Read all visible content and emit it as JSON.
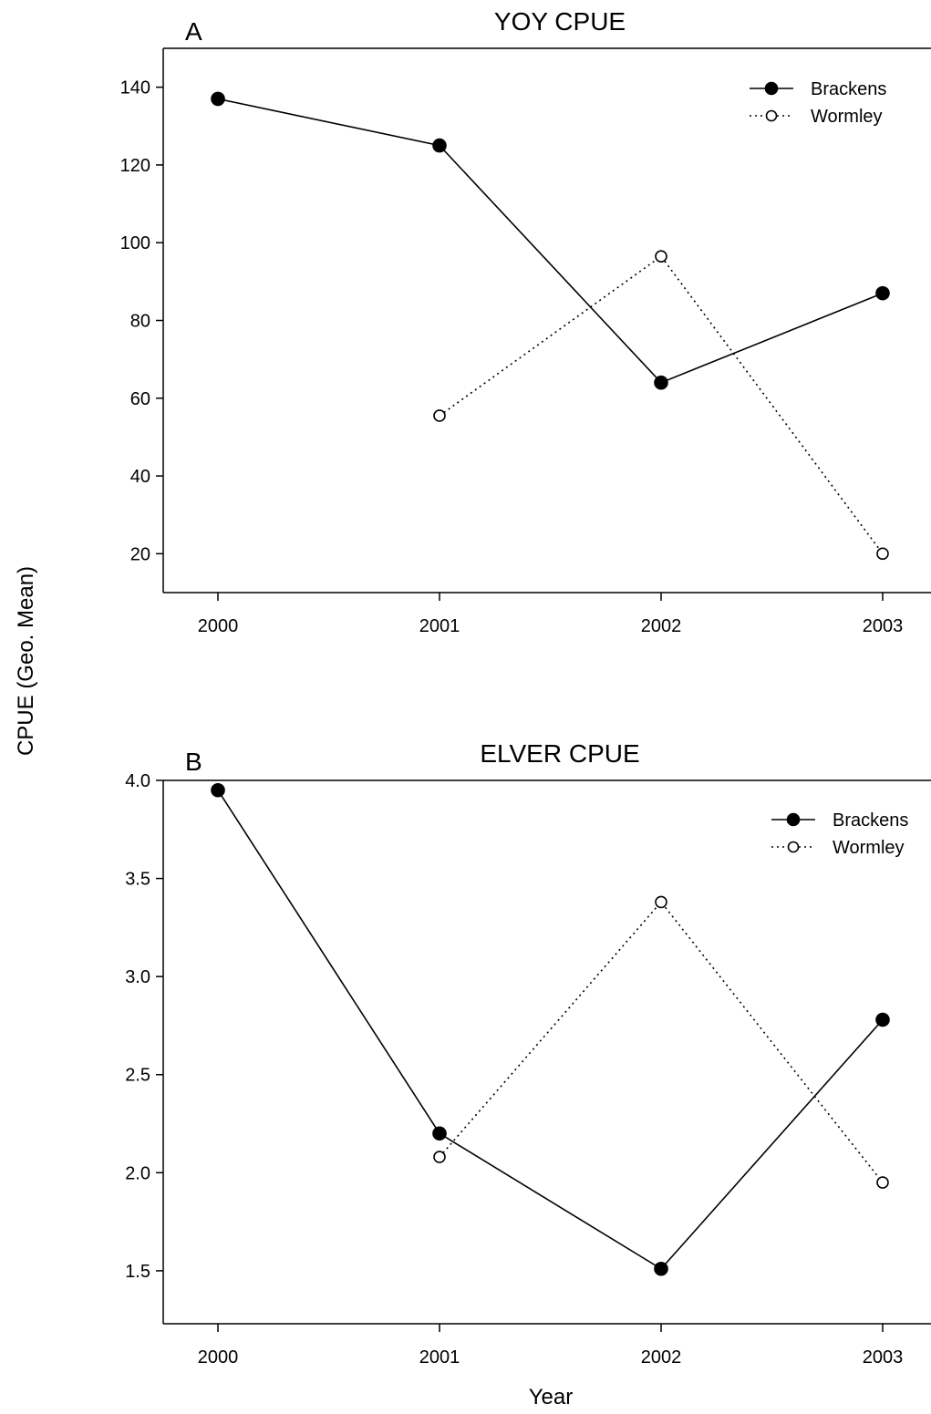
{
  "figure": {
    "ylabel": "CPUE (Geo. Mean)",
    "xlabel": "Year"
  },
  "chart_data": [
    {
      "type": "line",
      "panel_label": "A",
      "title": "YOY CPUE",
      "xlabel": "Year",
      "ylabel": "CPUE (Geo. Mean)",
      "x": [
        "2000",
        "2001",
        "2002",
        "2003"
      ],
      "ylim": [
        10,
        150
      ],
      "yticks": [
        20,
        40,
        60,
        80,
        100,
        120,
        140
      ],
      "ytick_labels": [
        "20",
        "40",
        "60",
        "80",
        "100",
        "120",
        "140"
      ],
      "grid": false,
      "legend_position": "top-right",
      "series": [
        {
          "name": "Brackens",
          "style": "solid",
          "marker": "filled-circle",
          "values": [
            137,
            125,
            64,
            87
          ]
        },
        {
          "name": "Wormley",
          "style": "dotted",
          "marker": "open-circle",
          "values": [
            null,
            55.5,
            96.5,
            20
          ]
        }
      ]
    },
    {
      "type": "line",
      "panel_label": "B",
      "title": "ELVER CPUE",
      "xlabel": "Year",
      "ylabel": "CPUE (Geo. Mean)",
      "x": [
        "2000",
        "2001",
        "2002",
        "2003"
      ],
      "ylim": [
        1.23,
        4.0
      ],
      "yticks": [
        1.5,
        2.0,
        2.5,
        3.0,
        3.5,
        4.0
      ],
      "ytick_labels": [
        "1.5",
        "2.0",
        "2.5",
        "3.0",
        "3.5",
        "4.0"
      ],
      "grid": false,
      "legend_position": "top-right",
      "series": [
        {
          "name": "Brackens",
          "style": "solid",
          "marker": "filled-circle",
          "values": [
            3.95,
            2.2,
            1.51,
            2.78
          ]
        },
        {
          "name": "Wormley",
          "style": "dotted",
          "marker": "open-circle",
          "values": [
            null,
            2.08,
            3.38,
            1.95
          ]
        }
      ]
    }
  ]
}
